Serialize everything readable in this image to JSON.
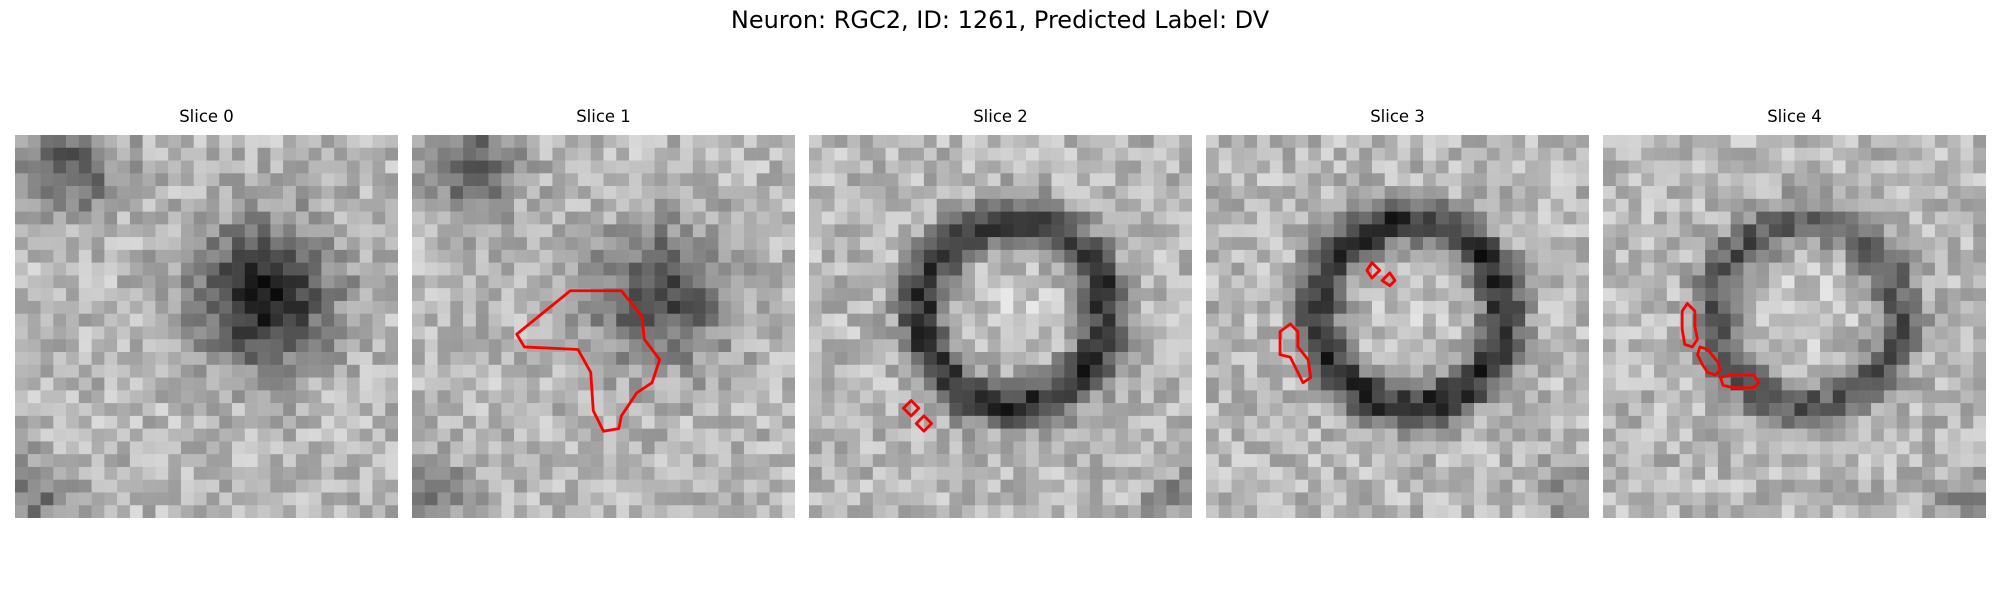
{
  "figure": {
    "title": "Neuron: RGC2, ID: 1261, Predicted Label: DV",
    "contour_color": "#ff0000"
  },
  "panels": [
    {
      "title": "Slice 0",
      "pattern": "blob",
      "contours": []
    },
    {
      "title": "Slice 1",
      "pattern": "blob_faint",
      "contours": [
        [
          [
            4.1,
            7.8
          ],
          [
            6.2,
            6.1
          ],
          [
            8.2,
            6.1
          ],
          [
            9.0,
            7.1
          ],
          [
            9.1,
            8.0
          ],
          [
            9.7,
            8.8
          ],
          [
            9.4,
            9.7
          ],
          [
            8.8,
            10.1
          ],
          [
            8.2,
            11.0
          ],
          [
            8.1,
            11.5
          ],
          [
            7.5,
            11.6
          ],
          [
            7.1,
            10.8
          ],
          [
            7.0,
            9.3
          ],
          [
            6.5,
            8.4
          ],
          [
            4.4,
            8.3
          ]
        ]
      ]
    },
    {
      "title": "Slice 2",
      "pattern": "ring",
      "contours": [
        [
          [
            3.7,
            10.7
          ],
          [
            4.0,
            10.4
          ],
          [
            4.3,
            10.7
          ],
          [
            4.0,
            11.0
          ]
        ],
        [
          [
            4.2,
            11.3
          ],
          [
            4.5,
            11.0
          ],
          [
            4.8,
            11.3
          ],
          [
            4.5,
            11.6
          ]
        ]
      ]
    },
    {
      "title": "Slice 3",
      "pattern": "ring",
      "contours": [
        [
          [
            2.9,
            7.7
          ],
          [
            3.3,
            7.4
          ],
          [
            3.6,
            7.7
          ],
          [
            3.6,
            8.3
          ],
          [
            4.0,
            8.8
          ],
          [
            4.1,
            9.5
          ],
          [
            3.8,
            9.7
          ],
          [
            3.6,
            9.3
          ],
          [
            3.3,
            8.7
          ],
          [
            2.9,
            8.6
          ]
        ],
        [
          [
            6.3,
            5.3
          ],
          [
            6.5,
            5.0
          ],
          [
            6.8,
            5.3
          ],
          [
            6.5,
            5.6
          ]
        ],
        [
          [
            6.9,
            5.7
          ],
          [
            7.2,
            5.4
          ],
          [
            7.4,
            5.7
          ],
          [
            7.2,
            5.9
          ]
        ]
      ]
    },
    {
      "title": "Slice 4",
      "pattern": "ring_faint",
      "contours": [
        [
          [
            3.1,
            6.9
          ],
          [
            3.3,
            6.6
          ],
          [
            3.6,
            6.9
          ],
          [
            3.6,
            7.5
          ],
          [
            3.7,
            8.0
          ],
          [
            3.5,
            8.3
          ],
          [
            3.2,
            8.2
          ],
          [
            3.1,
            7.6
          ]
        ],
        [
          [
            3.8,
            8.3
          ],
          [
            4.1,
            8.4
          ],
          [
            4.5,
            8.9
          ],
          [
            4.6,
            9.2
          ],
          [
            4.4,
            9.4
          ],
          [
            4.1,
            9.3
          ],
          [
            3.9,
            9.0
          ],
          [
            3.7,
            8.6
          ]
        ],
        [
          [
            4.6,
            9.5
          ],
          [
            5.0,
            9.4
          ],
          [
            5.9,
            9.4
          ],
          [
            6.1,
            9.7
          ],
          [
            5.9,
            9.9
          ],
          [
            5.1,
            9.9
          ],
          [
            4.7,
            9.8
          ]
        ]
      ]
    }
  ]
}
